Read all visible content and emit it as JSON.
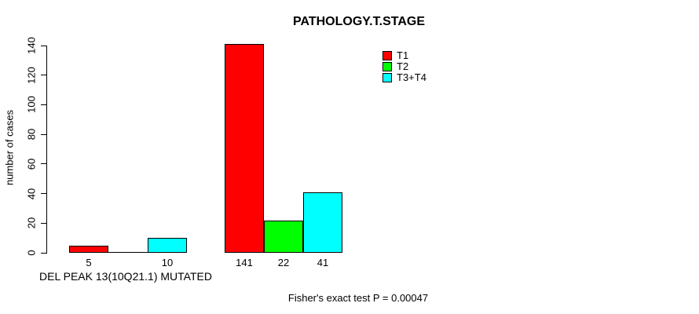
{
  "chart_data": {
    "type": "bar",
    "title": "PATHOLOGY.T.STAGE",
    "ylabel": "number of cases",
    "xlabel": "DEL PEAK 13(10Q21.1) MUTATED",
    "annotation": "Fisher's exact test P = 0.00047",
    "ylim": [
      0,
      140
    ],
    "yticks": [
      0,
      20,
      40,
      60,
      80,
      100,
      120,
      140
    ],
    "grid": false,
    "legend_position": "top-right",
    "groups": [
      "DEL PEAK 13(10Q21.1) MUTATED",
      ""
    ],
    "series": [
      {
        "name": "T1",
        "color": "#ff0000",
        "values": [
          5,
          141
        ]
      },
      {
        "name": "T2",
        "color": "#00ff00",
        "values": [
          0,
          22
        ]
      },
      {
        "name": "T3+T4",
        "color": "#00ffff",
        "values": [
          10,
          41
        ]
      }
    ],
    "bar_labels": [
      [
        "5",
        "",
        "10"
      ],
      [
        "141",
        "22",
        "41"
      ]
    ]
  }
}
